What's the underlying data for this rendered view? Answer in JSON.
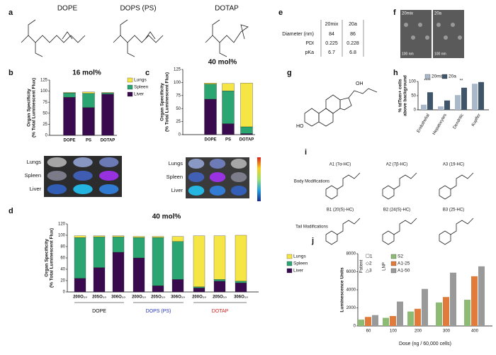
{
  "panels": {
    "labels": [
      "a",
      "b",
      "c",
      "d",
      "e",
      "f",
      "g",
      "h",
      "i",
      "j"
    ],
    "a": {
      "lipids": [
        "DOPE",
        "DOPS (PS)",
        "DOTAP"
      ]
    },
    "organ_rows": [
      "Lungs",
      "Spleen",
      "Liver"
    ],
    "e": {
      "header": [
        "20mix",
        "20a"
      ],
      "rows": [
        [
          "Diameter (nm)",
          "84",
          "86"
        ],
        [
          "PDI",
          "0.225",
          "0.228"
        ],
        [
          "pKa",
          "6.7",
          "6.8"
        ]
      ]
    },
    "f": {
      "images": [
        "20mix",
        "20a"
      ],
      "scale": "100 nm"
    },
    "g": {
      "atoms": [
        "HO",
        "OH"
      ]
    },
    "i": {
      "rows": [
        "Body Modifications",
        "Tail Modifications"
      ],
      "items": [
        "A1 (7α-HC)",
        "A2 (7β-HC)",
        "A3 (19-HC)",
        "B1 (20(S)-HC)",
        "B2 (24(S)-HC)",
        "B3 (25-HC)"
      ]
    }
  },
  "chart_data": [
    {
      "type": "bar",
      "stacked": true,
      "title": "16 mol%",
      "y_label": [
        "Organ Specificity",
        "(% Total Luminescent Flux)"
      ],
      "categories": [
        "DOPE",
        "PS",
        "DOTAP"
      ],
      "ylim": [
        0,
        125
      ],
      "yticks": [
        0,
        25,
        50,
        75,
        100,
        125
      ],
      "legend": true,
      "series": [
        {
          "name": "Liver",
          "color": "#3a0a4e",
          "values": [
            86,
            63,
            93
          ]
        },
        {
          "name": "Spleen",
          "color": "#2ba673",
          "values": [
            10,
            32,
            3
          ]
        },
        {
          "name": "Lungs",
          "color": "#f5e646",
          "values": [
            1,
            3,
            1
          ]
        }
      ]
    },
    {
      "type": "bar",
      "stacked": true,
      "title": "40 mol%",
      "y_label": [
        "Organ Specificity",
        "(% Total Luminescent Flux)"
      ],
      "categories": [
        "DOPE",
        "PS",
        "DOTAP"
      ],
      "ylim": [
        0,
        125
      ],
      "yticks": [
        0,
        25,
        50,
        75,
        100,
        125
      ],
      "legend": false,
      "series": [
        {
          "name": "Liver",
          "color": "#3a0a4e",
          "values": [
            68,
            21,
            2
          ]
        },
        {
          "name": "Spleen",
          "color": "#2ba673",
          "values": [
            29,
            63,
            13
          ]
        },
        {
          "name": "Lungs",
          "color": "#f5e646",
          "values": [
            2,
            14,
            84
          ]
        }
      ]
    },
    {
      "type": "bar",
      "stacked": true,
      "title": "40 mol%",
      "y_label": [
        "Organ Specificity",
        "(% Total Luminescent Flux)"
      ],
      "categories": [
        "200O₁₀",
        "205O₁₀",
        "306O₁₀",
        "200O₁₀",
        "205O₁₀",
        "306O₁₀",
        "200O₁₀",
        "205O₁₀",
        "306O₁₀"
      ],
      "groups": [
        {
          "label": "DOPE",
          "color": "#000000"
        },
        {
          "label": "DOPS (PS)",
          "color": "#2233bb"
        },
        {
          "label": "DOTAP",
          "color": "#dd2222"
        }
      ],
      "ylim": [
        0,
        120
      ],
      "yticks": [
        0,
        20,
        40,
        60,
        80,
        100,
        120
      ],
      "legend": true,
      "series": [
        {
          "name": "Liver",
          "color": "#3a0a4e",
          "values": [
            24,
            43,
            70,
            60,
            11,
            22,
            7,
            19,
            16
          ]
        },
        {
          "name": "Spleen",
          "color": "#2ba673",
          "values": [
            72,
            54,
            27,
            36,
            85,
            67,
            2,
            3,
            3
          ]
        },
        {
          "name": "Lungs",
          "color": "#f5e646",
          "values": [
            3,
            2,
            2,
            2,
            2,
            9,
            90,
            77,
            81
          ]
        }
      ]
    },
    {
      "type": "bar",
      "stacked": false,
      "y_label": [
        "% tdTom+ cells",
        "above background"
      ],
      "categories": [
        "Endothelial",
        "Hepatocytes",
        "Dendritic",
        "Kupffer"
      ],
      "ylim": [
        0,
        100
      ],
      "yticks": [
        0,
        50,
        100
      ],
      "legend": true,
      "annotations": [
        "****",
        "**"
      ],
      "series": [
        {
          "name": "20mix",
          "color": "#a9b9c9",
          "values": [
            18,
            12,
            52,
            92
          ]
        },
        {
          "name": "20a",
          "color": "#3f5569",
          "values": [
            62,
            33,
            78,
            98
          ]
        }
      ]
    },
    {
      "type": "bar",
      "stacked": false,
      "y_label": [
        "Luminescence Units"
      ],
      "x_label": "Dose (ng / 60,000 cells)",
      "categories": [
        "60",
        "100",
        "200",
        "300",
        "400"
      ],
      "ylim": [
        0,
        8000
      ],
      "yticks": [
        0,
        2000,
        4000,
        6000,
        8000
      ],
      "legend": true,
      "legend_titles": [
        "Patient",
        "LNP"
      ],
      "patients": [
        "☐1",
        "◇2",
        "△3"
      ],
      "series": [
        {
          "name": "S2",
          "color": "#8dbb74",
          "values": [
            700,
            900,
            1600,
            2600,
            2900
          ]
        },
        {
          "name": "A1-25",
          "color": "#e07b3c",
          "values": [
            1000,
            1100,
            1900,
            3200,
            5500
          ]
        },
        {
          "name": "A1-50",
          "color": "#9a9a9a",
          "values": [
            1200,
            2700,
            4100,
            5900,
            6600
          ]
        }
      ]
    }
  ]
}
